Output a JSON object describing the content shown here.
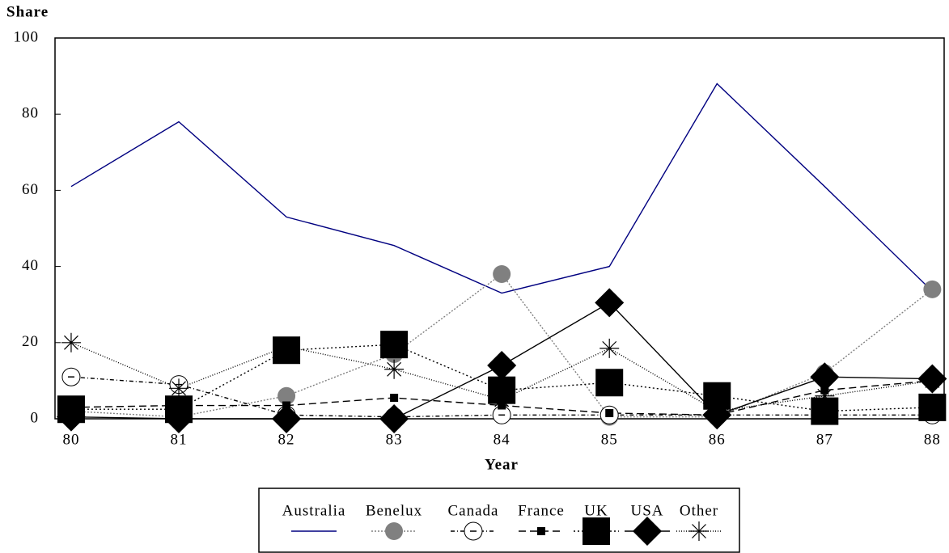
{
  "chart_data": {
    "type": "line",
    "ylabel": "Share",
    "xlabel": "Year",
    "x": [
      80,
      81,
      82,
      83,
      84,
      85,
      86,
      87,
      88
    ],
    "xlim": [
      79.85,
      88.11
    ],
    "xticks": [
      80,
      81,
      82,
      83,
      84,
      85,
      86,
      87,
      88
    ],
    "ylim": [
      0,
      100
    ],
    "yticks": [
      0,
      20,
      40,
      60,
      80,
      100
    ],
    "series": [
      {
        "name": "Australia",
        "color": "#000080",
        "dash": "none",
        "marker": "none",
        "values": [
          61,
          78,
          53,
          45.5,
          33,
          40,
          88,
          61,
          33.5
        ]
      },
      {
        "name": "Benelux",
        "color": "#808080",
        "dash": "2,2",
        "marker": "circle-filled",
        "values": [
          2,
          0.5,
          6,
          17,
          38,
          0.5,
          0.5,
          12,
          34
        ]
      },
      {
        "name": "Canada",
        "color": "#000000",
        "dash": "5,3,1,3",
        "marker": "circle-open",
        "values": [
          11,
          9,
          1,
          0.5,
          1,
          1,
          1,
          1,
          1
        ]
      },
      {
        "name": "France",
        "color": "#000000",
        "dash": "9,5",
        "marker": "square-small",
        "values": [
          3,
          3.5,
          3.5,
          5.5,
          3.5,
          1.5,
          1,
          7.5,
          10
        ]
      },
      {
        "name": "UK",
        "color": "#000000",
        "dash": "2,3",
        "marker": "square-large",
        "values": [
          2.5,
          2.5,
          18,
          19.5,
          7.5,
          9.5,
          6,
          2,
          3
        ]
      },
      {
        "name": "USA",
        "color": "#000000",
        "dash": "none",
        "marker": "diamond",
        "values": [
          0.5,
          0,
          0,
          0,
          14,
          30.5,
          1,
          11,
          10.5
        ]
      },
      {
        "name": "Other",
        "color": "#000000",
        "dash": "1,2",
        "marker": "asterisk",
        "values": [
          20,
          8,
          19,
          13,
          5,
          18.5,
          2,
          6,
          10
        ]
      }
    ]
  }
}
